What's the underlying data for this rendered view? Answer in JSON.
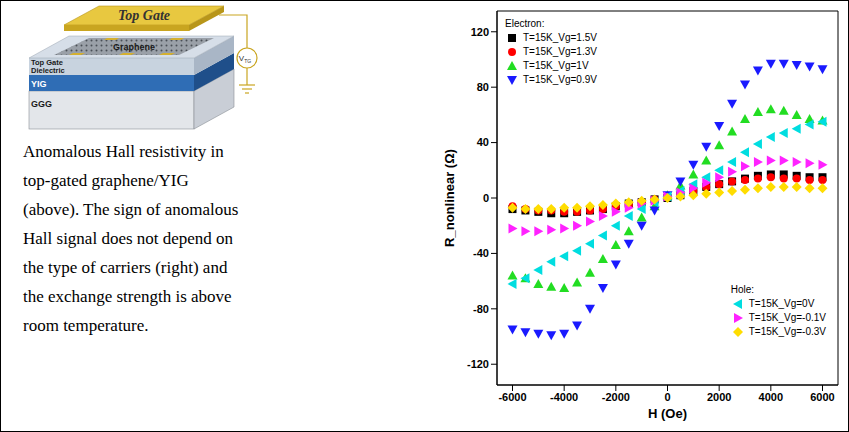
{
  "diagram": {
    "top_gate": "Top Gate",
    "graphene": "Graphene",
    "dielectric": [
      "Top Gate",
      "Dielectric"
    ],
    "yig": "YIG",
    "ggg": "GGG",
    "source_label": {
      "text": "V",
      "subscript": "TG"
    }
  },
  "caption": [
    "Anomalous Hall resistivity in",
    "top-gated graphene/YIG",
    "(above). The sign of anomalous",
    "Hall signal does not depend on",
    "the type of carriers (right) and",
    "the exchange strength is above",
    "room temperature."
  ],
  "chart_data": {
    "type": "scatter",
    "x_label": "H (Oe)",
    "y_label": "R_nonlinear (Ω)",
    "x": [
      -6000,
      -5500,
      -5000,
      -4500,
      -4000,
      -3500,
      -3000,
      -2500,
      -2000,
      -1500,
      -1000,
      -500,
      0,
      500,
      1000,
      1500,
      2000,
      2500,
      3000,
      3500,
      4000,
      4500,
      5000,
      5500,
      6000
    ],
    "xlim": [
      -6600,
      6600
    ],
    "xticks": [
      -6000,
      -4000,
      -2000,
      0,
      2000,
      4000,
      6000
    ],
    "ylim": [
      -135,
      135
    ],
    "yticks": [
      -120,
      -80,
      -40,
      0,
      40,
      80,
      120
    ],
    "grid": false,
    "legend_groups": [
      {
        "title": "Electron:",
        "legend": "upper left"
      },
      {
        "title": "Hole:",
        "legend": "lower right"
      }
    ],
    "series": [
      {
        "name": "T=15K_Vg=1.5V",
        "group": "Electron:",
        "color": "#000000",
        "marker": "square",
        "values": [
          -8,
          -9,
          -10,
          -11,
          -11,
          -10,
          -9,
          -8,
          -6,
          -4,
          -3,
          -1,
          0,
          2,
          5,
          8,
          10,
          12,
          14,
          16,
          17,
          17,
          16,
          15,
          15
        ]
      },
      {
        "name": "T=15K_Vg=1.3V",
        "group": "Electron:",
        "color": "#ff0000",
        "marker": "circle",
        "values": [
          -6,
          -8,
          -9,
          -9,
          -10,
          -10,
          -9,
          -8,
          -6,
          -5,
          -3,
          -1,
          1,
          3,
          5,
          8,
          10,
          12,
          13,
          14,
          15,
          14,
          14,
          13,
          13
        ]
      },
      {
        "name": "T=15K_Vg=1V",
        "group": "Electron:",
        "color": "#22dd22",
        "marker": "triangle_up",
        "values": [
          -56,
          -58,
          -62,
          -64,
          -65,
          -61,
          -54,
          -44,
          -34,
          -24,
          -14,
          -6,
          2,
          9,
          17,
          27,
          38,
          48,
          57,
          62,
          64,
          63,
          60,
          57,
          56
        ]
      },
      {
        "name": "T=15K_Vg=0.9V",
        "group": "Electron:",
        "color": "#1a1aff",
        "marker": "triangle_down",
        "values": [
          -95,
          -97,
          -98,
          -99,
          -98,
          -92,
          -80,
          -65,
          -48,
          -33,
          -20,
          -9,
          2,
          12,
          24,
          37,
          52,
          68,
          82,
          92,
          97,
          97,
          96,
          95,
          93
        ]
      },
      {
        "name": "T=15K_Vg=0V",
        "group": "Hole:",
        "color": "#00dde0",
        "marker": "triangle_left",
        "values": [
          -62,
          -58,
          -52,
          -46,
          -42,
          -38,
          -33,
          -27,
          -20,
          -13,
          -8,
          -3,
          1,
          5,
          10,
          15,
          20,
          26,
          33,
          39,
          44,
          47,
          50,
          53,
          55
        ]
      },
      {
        "name": "T=15K_Vg=-0.1V",
        "group": "Hole:",
        "color": "#ff22ff",
        "marker": "triangle_right",
        "values": [
          -22,
          -24,
          -24,
          -23,
          -22,
          -20,
          -17,
          -13,
          -10,
          -7,
          -4,
          -2,
          1,
          4,
          7,
          11,
          15,
          19,
          23,
          26,
          27,
          27,
          26,
          25,
          24
        ]
      },
      {
        "name": "T=15K_Vg=-0.3V",
        "group": "Hole:",
        "color": "#ffdd00",
        "marker": "diamond",
        "values": [
          -7,
          -8,
          -8,
          -8,
          -7,
          -7,
          -6,
          -5,
          -4,
          -3,
          -2,
          -1,
          0,
          1,
          2,
          3,
          4,
          5,
          6,
          7,
          8,
          8,
          8,
          7,
          7
        ]
      }
    ]
  }
}
